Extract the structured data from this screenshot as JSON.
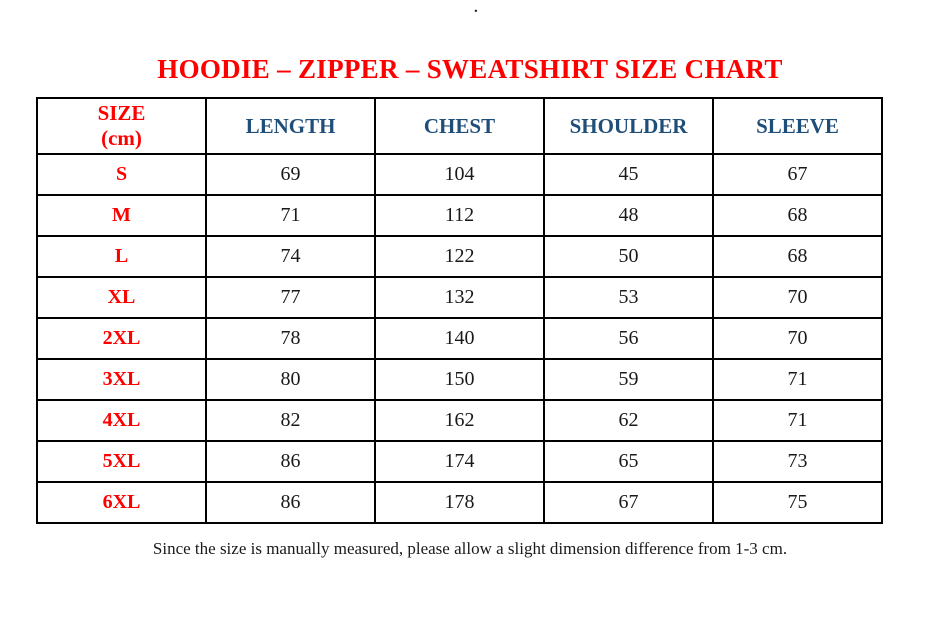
{
  "page": {
    "stray_dot": ".",
    "footer_note": "Since the size is manually measured, please allow a slight dimension difference from 1-3 cm."
  },
  "colors": {
    "title_red": "#FF0000",
    "header_blue": "#1F4E79",
    "text_black": "#1A1A1A",
    "border_black": "#000000",
    "background": "#FFFFFF"
  },
  "table": {
    "size_header_line1": "SIZE",
    "size_header_line2": "(cm)"
  },
  "chart_data": {
    "type": "table",
    "title": "HOODIE – ZIPPER – SWEATSHIRT SIZE CHART",
    "columns": [
      "SIZE (cm)",
      "LENGTH",
      "CHEST",
      "SHOULDER",
      "SLEEVE"
    ],
    "rows": [
      [
        "S",
        "69",
        "104",
        "45",
        "67"
      ],
      [
        "M",
        "71",
        "112",
        "48",
        "68"
      ],
      [
        "L",
        "74",
        "122",
        "50",
        "68"
      ],
      [
        "XL",
        "77",
        "132",
        "53",
        "70"
      ],
      [
        "2XL",
        "78",
        "140",
        "56",
        "70"
      ],
      [
        "3XL",
        "80",
        "150",
        "59",
        "71"
      ],
      [
        "4XL",
        "82",
        "162",
        "62",
        "71"
      ],
      [
        "5XL",
        "86",
        "174",
        "65",
        "73"
      ],
      [
        "6XL",
        "86",
        "178",
        "67",
        "75"
      ]
    ]
  }
}
